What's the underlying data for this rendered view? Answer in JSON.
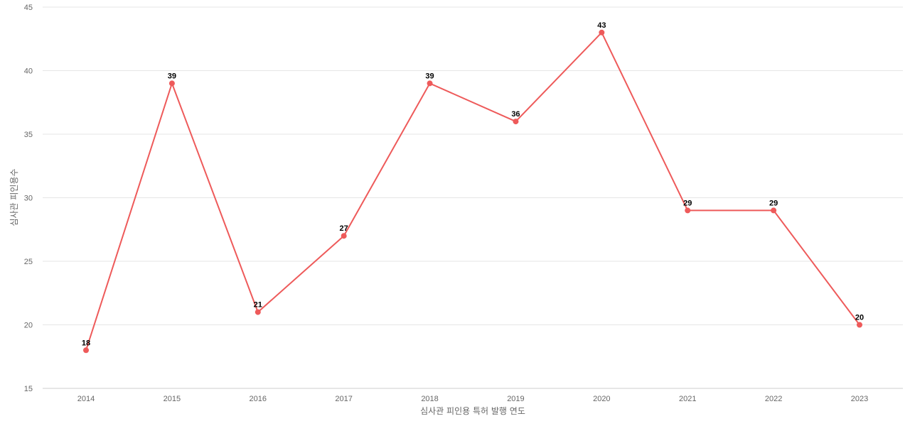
{
  "chart_data": {
    "type": "line",
    "title": "",
    "xlabel": "심사관 피인용 특허 발행 연도",
    "ylabel": "심사관 피인용수",
    "categories": [
      "2014",
      "2015",
      "2016",
      "2017",
      "2018",
      "2019",
      "2020",
      "2021",
      "2022",
      "2023"
    ],
    "series": [
      {
        "values": [
          18,
          39,
          21,
          27,
          39,
          36,
          43,
          29,
          29,
          20
        ],
        "color": "#ee5a5a"
      }
    ],
    "ylim": [
      15,
      45
    ],
    "yticks": [
      15,
      20,
      25,
      30,
      35,
      40,
      45
    ],
    "grid": true,
    "legend": "none",
    "data_labels": true
  }
}
